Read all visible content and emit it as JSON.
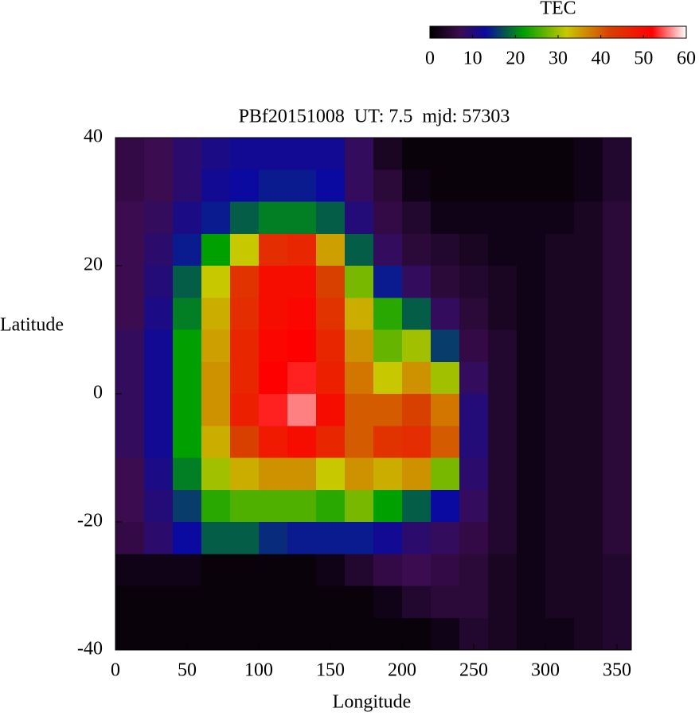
{
  "chart_data": {
    "type": "heatmap",
    "title": "PBf20151008  UT: 7.5  mjd: 57303",
    "x_label": "Longitude",
    "y_label": "Latitude",
    "xlim": [
      0,
      360
    ],
    "xticks": [
      0,
      50,
      100,
      150,
      200,
      250,
      300,
      350
    ],
    "ylim": [
      -40,
      40
    ],
    "yticks": [
      -40,
      -20,
      0,
      20,
      40
    ],
    "z": [
      [
        6,
        7,
        9,
        11,
        12,
        12,
        12,
        12,
        8,
        3,
        1,
        1,
        1,
        1,
        1,
        1,
        2,
        4
      ],
      [
        6,
        7,
        9,
        12,
        13,
        14,
        14,
        13,
        8,
        5,
        2,
        1,
        1,
        1,
        1,
        1,
        2,
        4
      ],
      [
        7,
        8,
        11,
        14,
        18,
        20,
        20,
        18,
        10,
        6,
        4,
        2,
        2,
        2,
        2,
        2,
        3,
        5
      ],
      [
        7,
        9,
        14,
        22,
        32,
        45,
        46,
        35,
        18,
        8,
        5,
        4,
        3,
        2,
        2,
        3,
        3,
        5
      ],
      [
        7,
        10,
        18,
        32,
        44,
        50,
        50,
        42,
        28,
        14,
        8,
        5,
        4,
        3,
        2,
        3,
        3,
        5
      ],
      [
        7,
        11,
        20,
        34,
        45,
        50,
        51,
        44,
        34,
        24,
        18,
        8,
        5,
        3,
        2,
        3,
        3,
        5
      ],
      [
        8,
        12,
        22,
        35,
        46,
        51,
        52,
        46,
        36,
        27,
        30,
        16,
        6,
        4,
        2,
        3,
        3,
        5
      ],
      [
        8,
        12,
        22,
        36,
        46,
        52,
        53,
        47,
        38,
        32,
        36,
        30,
        8,
        4,
        2,
        3,
        3,
        5
      ],
      [
        8,
        12,
        22,
        36,
        47,
        53,
        56,
        50,
        40,
        40,
        42,
        38,
        10,
        4,
        2,
        3,
        3,
        5
      ],
      [
        8,
        12,
        22,
        34,
        42,
        48,
        50,
        46,
        40,
        44,
        45,
        40,
        10,
        4,
        2,
        3,
        3,
        5
      ],
      [
        7,
        11,
        20,
        30,
        34,
        36,
        36,
        32,
        36,
        34,
        36,
        28,
        9,
        4,
        2,
        3,
        3,
        5
      ],
      [
        7,
        10,
        16,
        24,
        26,
        26,
        26,
        24,
        28,
        22,
        18,
        13,
        8,
        4,
        2,
        3,
        3,
        5
      ],
      [
        6,
        9,
        13,
        18,
        18,
        15,
        14,
        14,
        14,
        12,
        9,
        8,
        6,
        4,
        2,
        3,
        3,
        5
      ],
      [
        2,
        2,
        2,
        1,
        1,
        1,
        1,
        2,
        4,
        6,
        7,
        6,
        5,
        3,
        2,
        3,
        3,
        4
      ],
      [
        1,
        1,
        1,
        1,
        1,
        1,
        1,
        1,
        1,
        2,
        4,
        5,
        5,
        3,
        2,
        3,
        3,
        4
      ],
      [
        1,
        1,
        1,
        1,
        1,
        1,
        1,
        1,
        1,
        1,
        1,
        2,
        4,
        3,
        2,
        2,
        3,
        4
      ]
    ],
    "colorscale": [
      [
        0,
        "#000000"
      ],
      [
        7,
        "#3c0c50"
      ],
      [
        13,
        "#0a0aa0"
      ],
      [
        22,
        "#00a000"
      ],
      [
        32,
        "#c8c800"
      ],
      [
        42,
        "#d84000"
      ],
      [
        52,
        "#ff0000"
      ],
      [
        60,
        "#ffffff"
      ]
    ],
    "colorbar": {
      "label": "TEC",
      "lim": [
        0,
        60
      ],
      "ticks": [
        0,
        10,
        20,
        30,
        40,
        50,
        60
      ]
    }
  }
}
